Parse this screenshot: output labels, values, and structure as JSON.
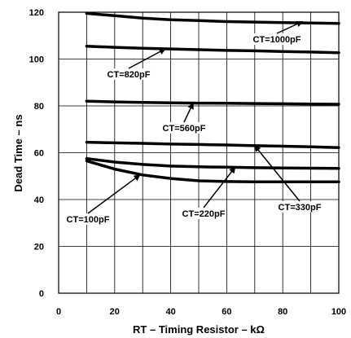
{
  "chart_data": {
    "type": "line",
    "xlabel": "RT – Timing Resistor – kΩ",
    "ylabel": "Dead Time – ns",
    "xlim": [
      0,
      100
    ],
    "ylim": [
      0,
      120
    ],
    "x_ticks": [
      "0",
      "20",
      "40",
      "60",
      "80",
      "100"
    ],
    "y_ticks": [
      "0",
      "20",
      "40",
      "60",
      "80",
      "100",
      "120"
    ],
    "grid": true,
    "series": [
      {
        "name": "CT=1000pF",
        "x": [
          10,
          20,
          30,
          40,
          50,
          60,
          70,
          80,
          90,
          100
        ],
        "y": [
          119.5,
          118.5,
          117.5,
          116.8,
          116.4,
          116.0,
          115.8,
          115.6,
          115.4,
          115.2
        ]
      },
      {
        "name": "CT=820pF",
        "x": [
          10,
          20,
          30,
          40,
          50,
          60,
          70,
          80,
          90,
          100
        ],
        "y": [
          105.5,
          105.0,
          104.6,
          104.3,
          104.0,
          103.7,
          103.5,
          103.2,
          103.0,
          102.7
        ]
      },
      {
        "name": "CT=560pF",
        "x": [
          10,
          20,
          30,
          40,
          50,
          60,
          70,
          80,
          90,
          100
        ],
        "y": [
          82.0,
          81.7,
          81.5,
          81.3,
          81.2,
          81.1,
          81.0,
          80.9,
          80.8,
          80.7
        ]
      },
      {
        "name": "CT=330pF",
        "x": [
          10,
          20,
          30,
          40,
          50,
          60,
          70,
          80,
          90,
          100
        ],
        "y": [
          64.5,
          64.2,
          64.0,
          63.7,
          63.5,
          63.3,
          63.0,
          62.8,
          62.5,
          62.2
        ]
      },
      {
        "name": "CT=220pF",
        "x": [
          10,
          20,
          30,
          40,
          50,
          60,
          70,
          80,
          90,
          100
        ],
        "y": [
          57.5,
          56.0,
          55.0,
          54.3,
          54.0,
          53.8,
          53.6,
          53.5,
          53.4,
          53.3
        ]
      },
      {
        "name": "CT=100pF",
        "x": [
          10,
          20,
          30,
          40,
          50,
          60,
          70,
          80,
          90,
          100
        ],
        "y": [
          56.5,
          53.0,
          50.5,
          49.0,
          48.0,
          47.7,
          47.6,
          47.6,
          47.6,
          47.6
        ]
      }
    ],
    "annotations": [
      {
        "text": "CT=1000pF",
        "point_x": 87,
        "point_y": 116
      },
      {
        "text": "CT=820pF",
        "point_x": 38,
        "point_y": 104.3
      },
      {
        "text": "CT=560pF",
        "point_x": 48,
        "point_y": 81.2
      },
      {
        "text": "CT=330pF",
        "point_x": 70,
        "point_y": 63.0
      },
      {
        "text": "CT=220pF",
        "point_x": 63,
        "point_y": 53.8
      },
      {
        "text": "CT=100pF",
        "point_x": 29,
        "point_y": 50.5
      }
    ]
  }
}
